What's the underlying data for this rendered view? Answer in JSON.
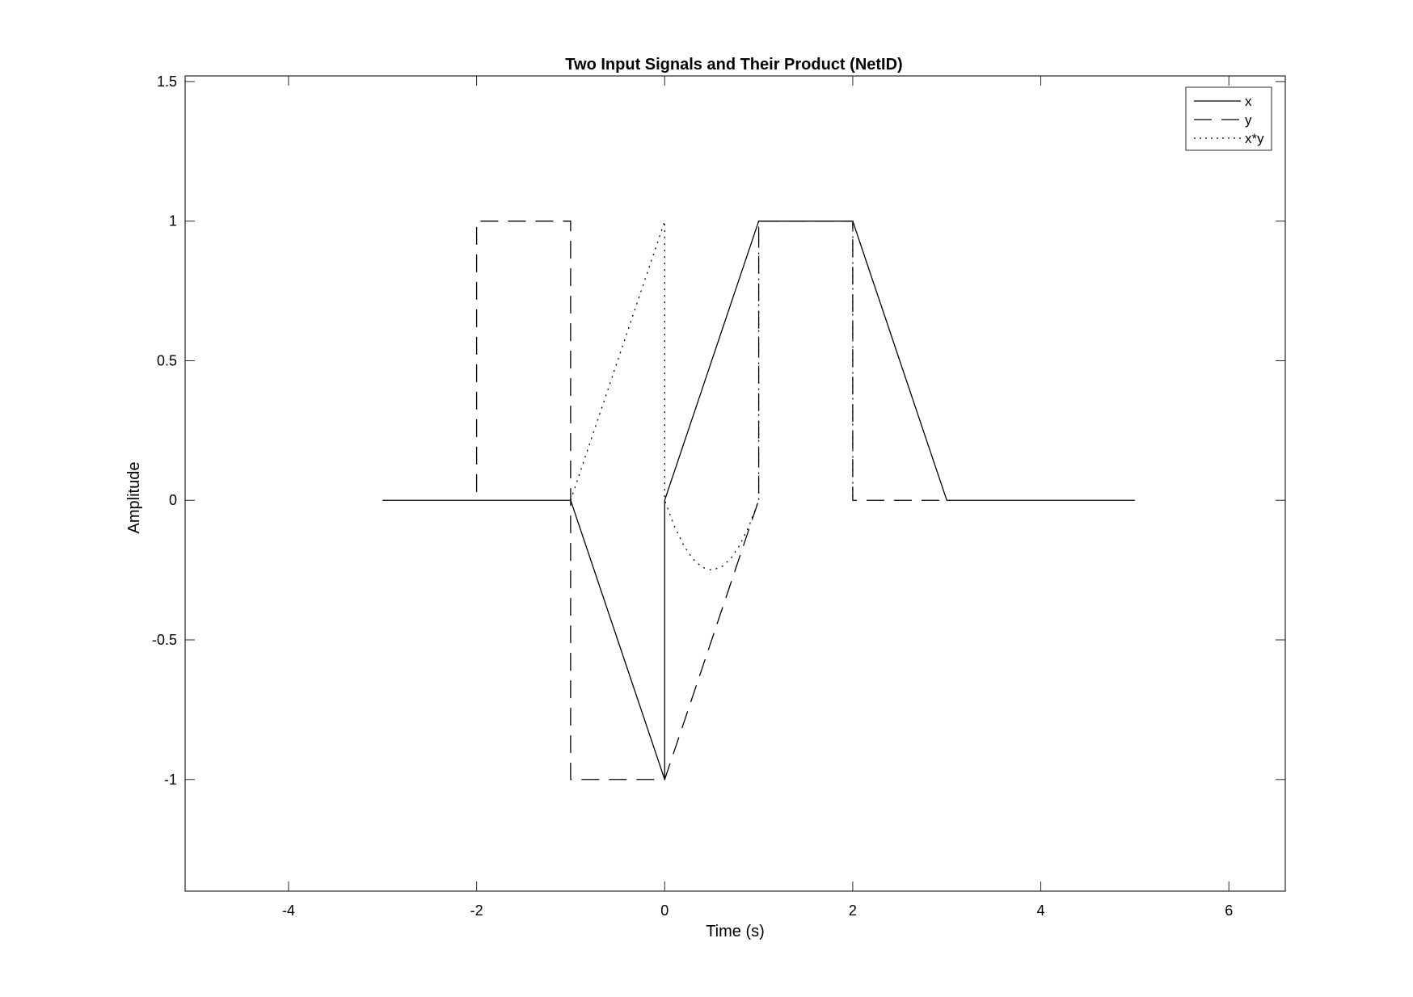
{
  "chart_data": {
    "type": "line",
    "title": "Two Input Signals and Their Product (NetID)",
    "xlabel": "Time (s)",
    "ylabel": "Amplitude",
    "xlim": [
      -5.1,
      6.6
    ],
    "ylim": [
      -1.4,
      1.52
    ],
    "xticks": [
      -4,
      -2,
      0,
      2,
      4,
      6
    ],
    "yticks": [
      -1,
      -0.5,
      0,
      0.5,
      1,
      1.5
    ],
    "xtick_labels": [
      "-4",
      "-2",
      "0",
      "2",
      "4",
      "6"
    ],
    "ytick_labels": [
      "-1",
      "-0.5",
      "0",
      "0.5",
      "1",
      "1.5"
    ],
    "grid": false,
    "legend_position": "top-right",
    "series": [
      {
        "name": "x",
        "style": "solid",
        "x": [
          -3,
          -1,
          0,
          0,
          1,
          2,
          3,
          5
        ],
        "y": [
          0,
          0,
          -1,
          0,
          1,
          1,
          0,
          0
        ]
      },
      {
        "name": "y",
        "style": "dashed",
        "x": [
          -2,
          -2,
          -1,
          -1,
          0,
          1,
          1,
          2,
          2,
          3
        ],
        "y": [
          0.03,
          1,
          1,
          -1,
          -1,
          0,
          1,
          1,
          0,
          0
        ]
      },
      {
        "name": "x*y",
        "style": "dotted",
        "x": [
          -1,
          0,
          0,
          0.1,
          0.2,
          0.3,
          0.4,
          0.5,
          0.6,
          0.7,
          0.8,
          0.9,
          1,
          1,
          2,
          2
        ],
        "y": [
          0,
          1,
          0,
          -0.09,
          -0.16,
          -0.21,
          -0.24,
          -0.25,
          -0.24,
          -0.21,
          -0.16,
          -0.09,
          0,
          1,
          1,
          0
        ]
      }
    ]
  }
}
